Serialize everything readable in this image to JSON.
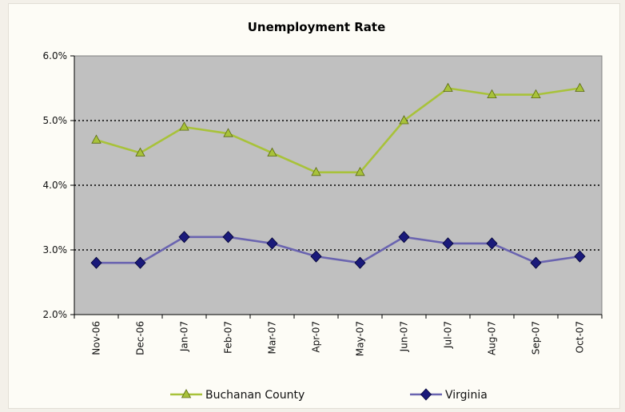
{
  "chart_data": {
    "type": "line",
    "title": "Unemployment Rate",
    "xlabel": "",
    "ylabel": "",
    "categories": [
      "Nov-06",
      "Dec-06",
      "Jan-07",
      "Feb-07",
      "Mar-07",
      "Apr-07",
      "May-07",
      "Jun-07",
      "Jul-07",
      "Aug-07",
      "Sep-07",
      "Oct-07"
    ],
    "ylim": [
      2.0,
      6.0
    ],
    "yticks": [
      "2.0%",
      "3.0%",
      "4.0%",
      "5.0%",
      "6.0%"
    ],
    "grid": "horizontal dotted at 3.0%, 4.0%, 5.0%",
    "plot_background": "#c0c0c0",
    "legend_position": "bottom",
    "series": [
      {
        "name": "Buchanan County",
        "color": "#a8c23a",
        "marker": "triangle",
        "values": [
          4.7,
          4.5,
          4.9,
          4.8,
          4.5,
          4.2,
          4.2,
          5.0,
          5.5,
          5.4,
          5.4,
          5.5
        ]
      },
      {
        "name": "Virginia",
        "color": "#1a1a7a",
        "marker": "diamond",
        "values": [
          2.8,
          2.8,
          3.2,
          3.2,
          3.1,
          2.9,
          2.8,
          3.2,
          3.1,
          3.1,
          2.8,
          2.9
        ]
      }
    ]
  }
}
